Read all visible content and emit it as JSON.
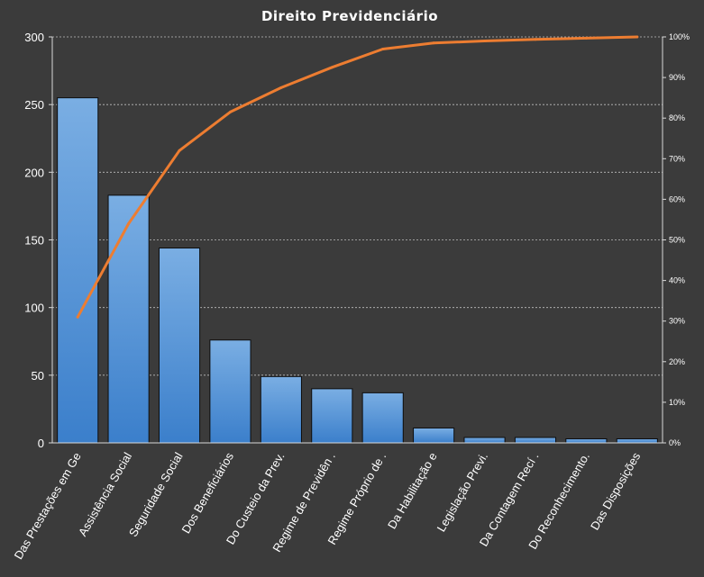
{
  "chart_data": {
    "type": "bar",
    "title": "Direito  Previdenciário",
    "categories": [
      "Das Prestações em Ge",
      "Assistência Social",
      "Seguridade Social",
      "Dos Beneficiários",
      "Do Custeio da Prev.",
      "Regime de Previdên .",
      "Regime Próprio de .",
      "Da Habilitação e",
      "Legislação Previ.",
      "Da Contagem Recí .",
      "Do Reconhecimento.",
      "Das Disposições"
    ],
    "series": [
      {
        "type": "bar",
        "axis": "left",
        "values": [
          255,
          183,
          144,
          76,
          49,
          40,
          37,
          11,
          4,
          4,
          3,
          3
        ]
      },
      {
        "type": "line",
        "axis": "right",
        "values": [
          0.31,
          0.54,
          0.72,
          0.815,
          0.875,
          0.925,
          0.97,
          0.985,
          0.99,
          0.994,
          0.997,
          1.0
        ]
      }
    ],
    "ylim": [
      0,
      300
    ],
    "yticks": [
      "0",
      "50",
      "100",
      "150",
      "200",
      "250",
      "300"
    ],
    "y2lim": [
      0,
      1
    ],
    "y2ticks": [
      "0%",
      "10%",
      "20%",
      "30%",
      "40%",
      "50%",
      "60%",
      "70%",
      "80%",
      "90%",
      "100%"
    ],
    "grid": true,
    "legend": "none",
    "colors": {
      "background": "#3b3b3b",
      "bar_top": "#7aaee3",
      "bar_bottom": "#3b7fcb",
      "bar_stroke": "#0d0d0d",
      "line": "#ed7d31",
      "grid": "#bfbfbf",
      "text": "#ffffff"
    }
  }
}
